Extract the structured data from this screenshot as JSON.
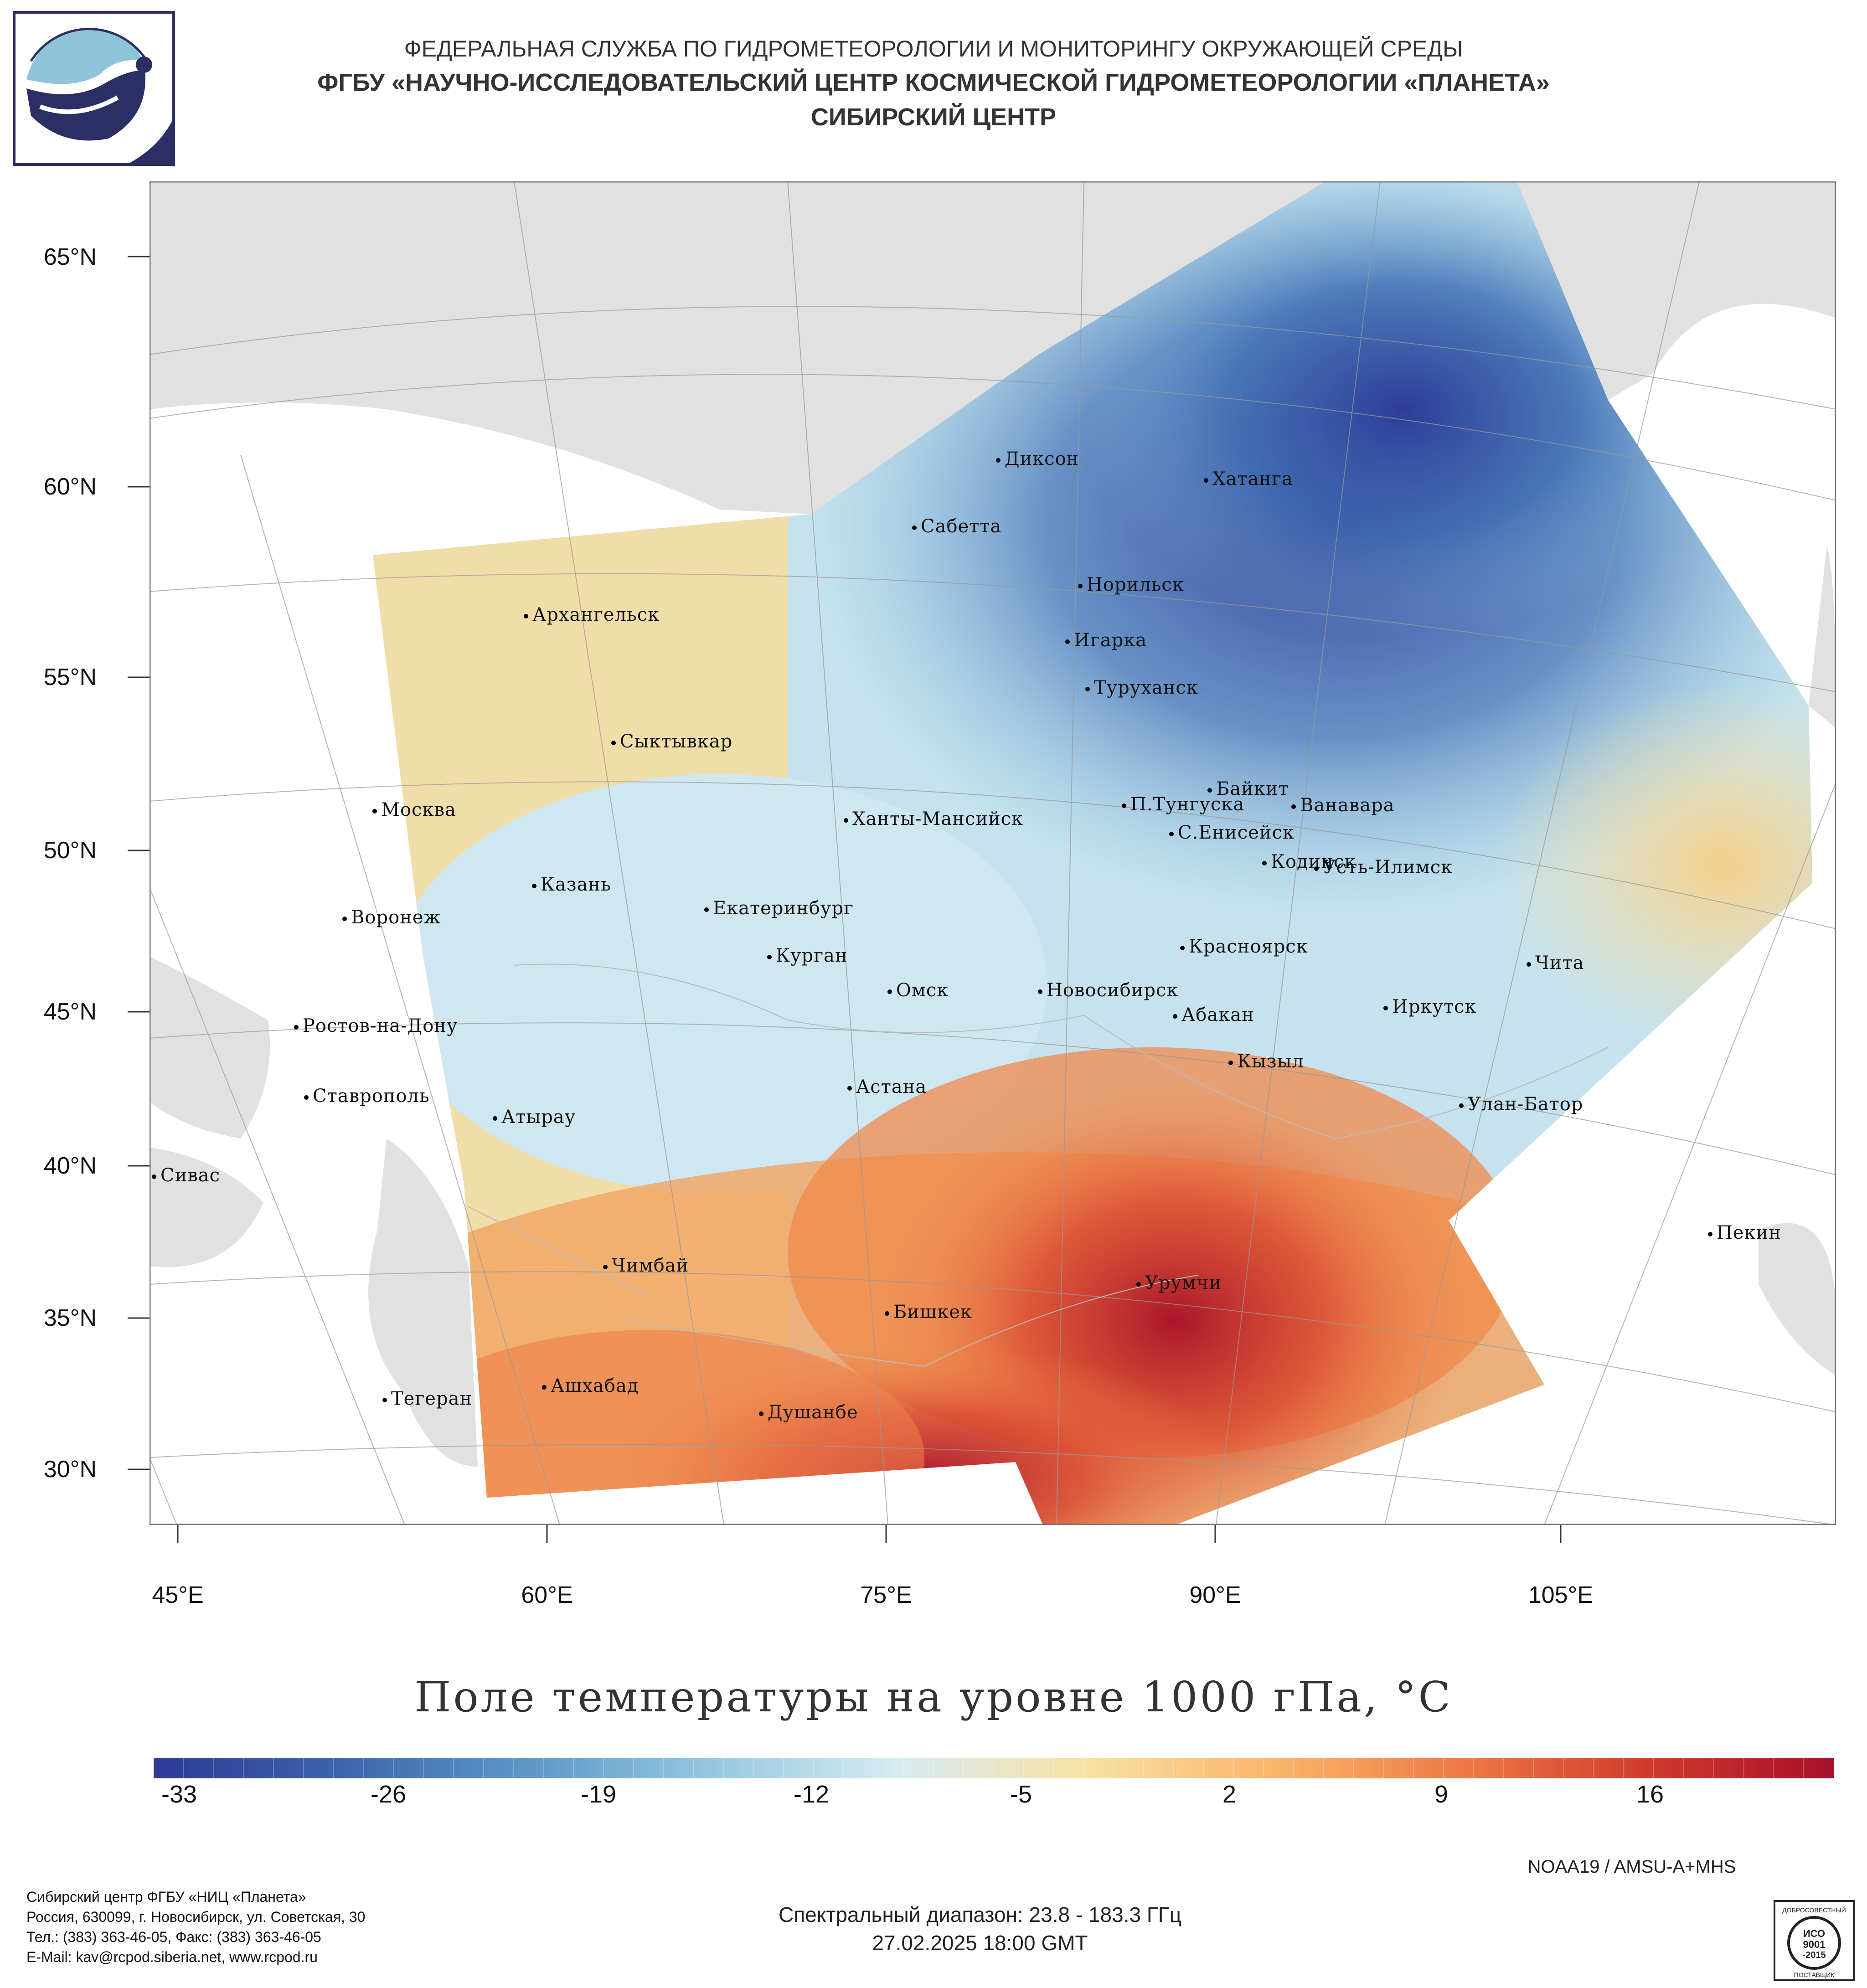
{
  "header": {
    "line1": "ФЕДЕРАЛЬНАЯ СЛУЖБА ПО ГИДРОМЕТЕОРОЛОГИИ И МОНИТОРИНГУ ОКРУЖАЮЩЕЙ СРЕДЫ",
    "line2": "ФГБУ «НАУЧНО-ИССЛЕДОВАТЕЛЬСКИЙ ЦЕНТР КОСМИЧЕСКОЙ ГИДРОМЕТЕОРОЛОГИИ «ПЛАНЕТА»",
    "line3": "СИБИРСКИЙ ЦЕНТР"
  },
  "map": {
    "lat_labels": [
      "65°N",
      "60°N",
      "55°N",
      "50°N",
      "45°N",
      "40°N",
      "35°N",
      "30°N"
    ],
    "lon_labels": [
      "45°E",
      "60°E",
      "75°E",
      "90°E",
      "105°E"
    ],
    "cities": [
      "Диксон",
      "Хатанга",
      "Сабетта",
      "Норильск",
      "Архангельск",
      "Игарка",
      "Туруханск",
      "Сыктывкар",
      "Байкит",
      "Москва",
      "П.Тунгуска",
      "Ванавара",
      "Ханты-Мансийск",
      "С.Енисейск",
      "Казань",
      "Кодинск",
      "Усть-Илимск",
      "Воронеж",
      "Екатеринбург",
      "Красноярск",
      "Курган",
      "Чита",
      "Омск",
      "Новосибирск",
      "Иркутск",
      "Абакан",
      "Ростов-на-Дону",
      "Кызыл",
      "Астана",
      "Ставрополь",
      "Улан-Батор",
      "Атырау",
      "Сивас",
      "Пекин",
      "Чимбай",
      "Урумчи",
      "Бишкек",
      "Ашхабад",
      "Тегеран",
      "Душанбе"
    ]
  },
  "title": "Поле температуры на уровне 1000 гПа, °C",
  "colorbar": {
    "ticks": [
      "-33",
      "-26",
      "-19",
      "-12",
      "-5",
      "2",
      "9",
      "16"
    ],
    "colors": [
      "#2c3a96",
      "#3b64ad",
      "#5d97c7",
      "#95c8e0",
      "#d8ecf2",
      "#f8e1a2",
      "#fbb56a",
      "#ef7a45",
      "#cf3a2c",
      "#a70f29"
    ]
  },
  "satellite": "NOAA19 / AMSU-A+MHS",
  "spectral": "Спектральный диапазон: 23.8 - 183.3 ГГц",
  "datetime": "27.02.2025 18:00 GMT",
  "footer": {
    "line1": "Сибирский центр ФГБУ «НИЦ «Планета»",
    "line2": "Россия, 630099, г. Новосибирск, ул. Советская, 30",
    "line3": "Тел.: (383) 363-46-05, Факс: (383) 363-46-05",
    "line4": "E-Mail: kav@rcpod.siberia.net, www.rcpod.ru"
  },
  "stamp": {
    "top": "ДОБРОСОВЕСТНЫЙ",
    "iso": "ИСО",
    "num": "9001",
    "year": "-2015",
    "bottom": "ПОСТАВЩИК"
  }
}
